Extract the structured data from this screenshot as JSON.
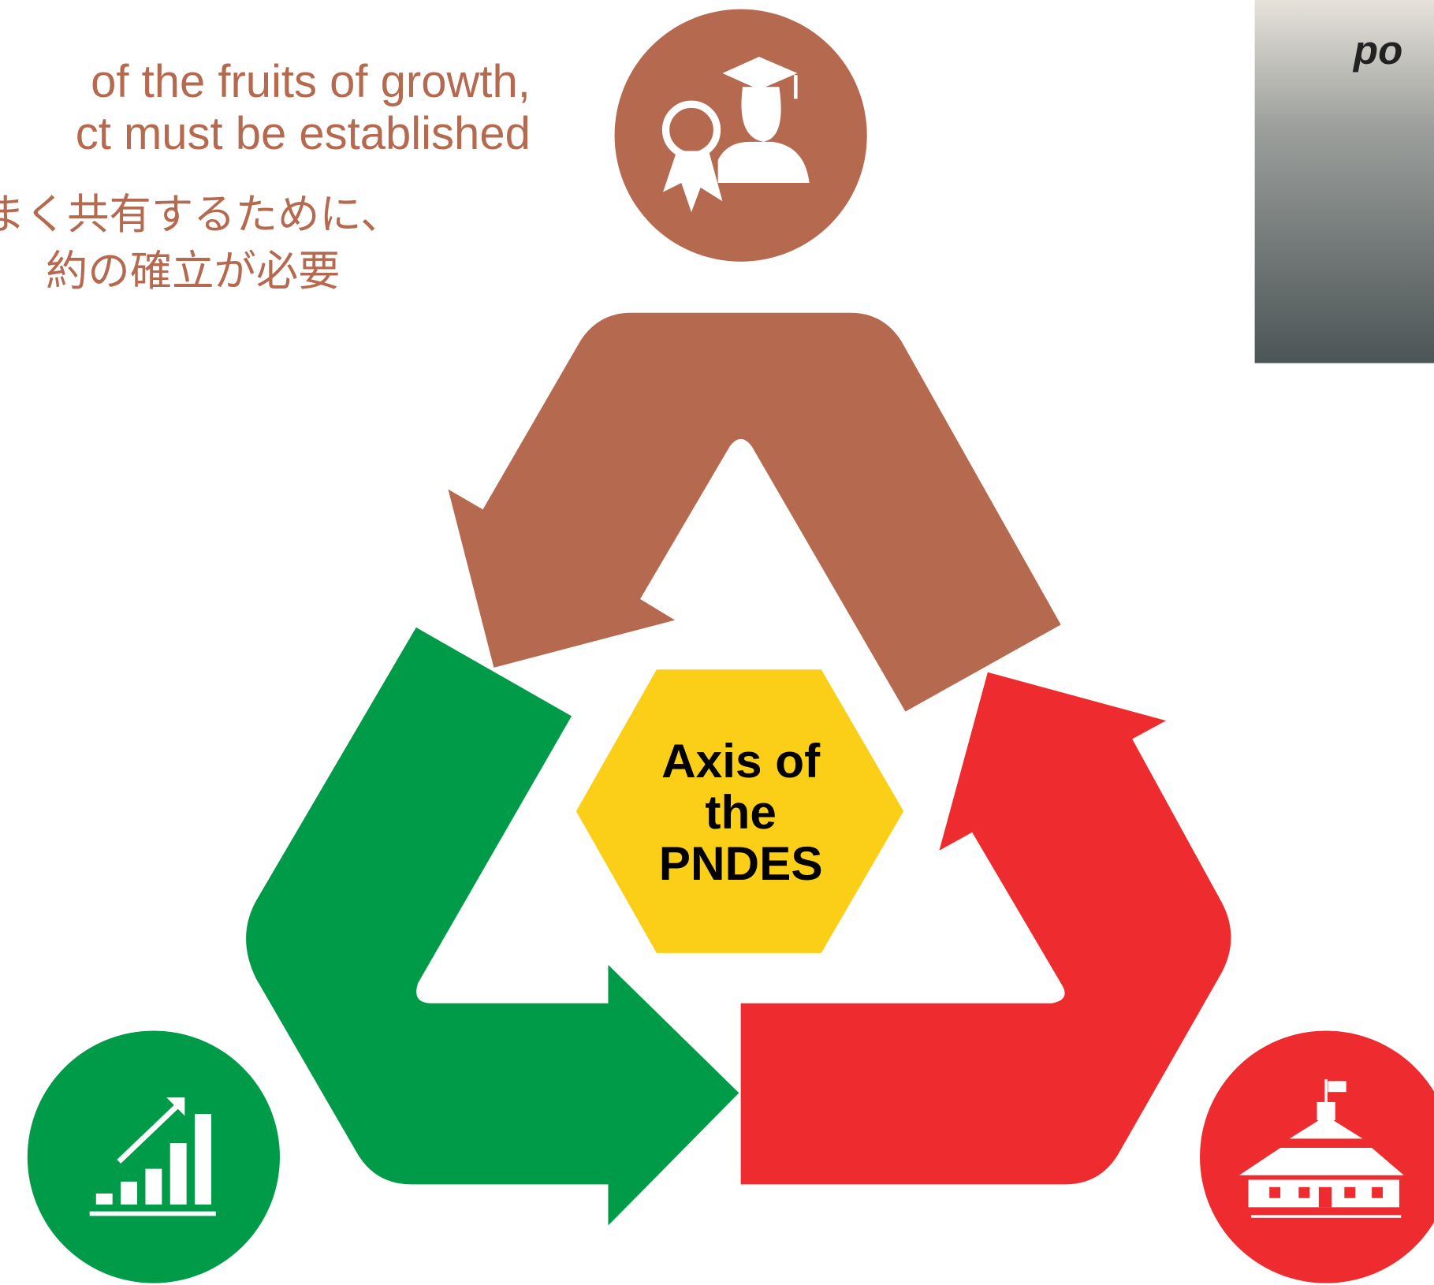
{
  "header": {
    "lines": [
      "of the fruits of growth,",
      "ct must be established"
    ],
    "japanese": [
      "まく共有するために、",
      "約の確立が必要"
    ]
  },
  "center": {
    "lines": [
      "Axis of",
      "the",
      "PNDES"
    ]
  },
  "photo": {
    "caption": "po"
  }
}
